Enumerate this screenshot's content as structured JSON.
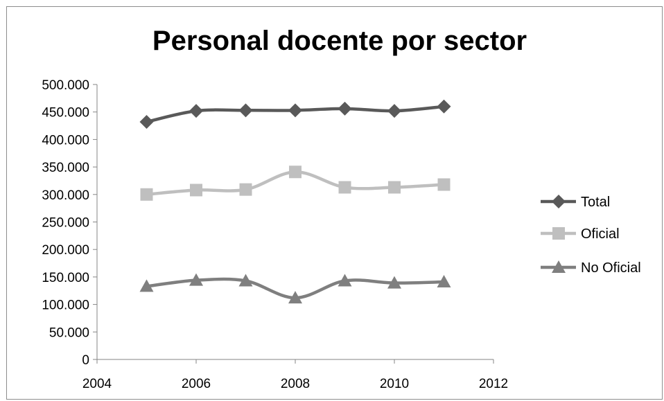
{
  "chart_data": {
    "type": "line",
    "title": "Personal docente por sector",
    "xlabel": "",
    "ylabel": "",
    "x": [
      2005,
      2006,
      2007,
      2008,
      2009,
      2010,
      2011
    ],
    "xlim": [
      2004,
      2012
    ],
    "ylim": [
      0,
      500000
    ],
    "x_ticks": [
      2004,
      2006,
      2008,
      2010,
      2012
    ],
    "x_tick_labels": [
      "2004",
      "2006",
      "2008",
      "2010",
      "2012"
    ],
    "y_ticks": [
      0,
      50000,
      100000,
      150000,
      200000,
      250000,
      300000,
      350000,
      400000,
      450000,
      500000
    ],
    "y_tick_labels": [
      "0",
      "50.000",
      "100.000",
      "150.000",
      "200.000",
      "250.000",
      "300.000",
      "350.000",
      "400.000",
      "450.000",
      "500.000"
    ],
    "grid": false,
    "smooth": true,
    "legend_position": "right",
    "series": [
      {
        "name": "Total",
        "marker": "diamond",
        "color": "#595959",
        "values": [
          432000,
          452000,
          453000,
          453000,
          456000,
          452000,
          460000
        ]
      },
      {
        "name": "Oficial",
        "marker": "square",
        "color": "#bfbfbf",
        "values": [
          300000,
          308000,
          309000,
          341000,
          313000,
          313000,
          318000
        ]
      },
      {
        "name": "No Oficial",
        "marker": "triangle",
        "color": "#7f7f7f",
        "values": [
          133000,
          144000,
          143000,
          112000,
          143000,
          139000,
          141000
        ]
      }
    ]
  }
}
